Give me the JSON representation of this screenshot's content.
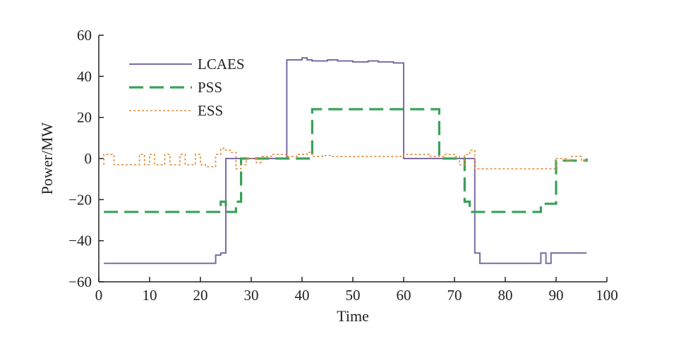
{
  "chart_data": {
    "type": "line",
    "title": "",
    "xlabel": "Time",
    "ylabel": "Power/MW",
    "xlim": [
      0,
      100
    ],
    "ylim": [
      -60,
      60
    ],
    "xticks": [
      0,
      10,
      20,
      30,
      40,
      50,
      60,
      70,
      80,
      90,
      100
    ],
    "yticks": [
      -60,
      -40,
      -20,
      0,
      20,
      40,
      60
    ],
    "ytick_labels": [
      "−60",
      "−40",
      "−20",
      "0",
      "20",
      "40",
      "60"
    ],
    "grid": false,
    "legend_position": "top-left",
    "series": [
      {
        "name": "LCAES",
        "color": "#7b6aa6",
        "dash": "solid",
        "step": true,
        "points": [
          [
            1,
            -51
          ],
          [
            23,
            -51
          ],
          [
            23,
            -47
          ],
          [
            24,
            -47
          ],
          [
            24,
            -46
          ],
          [
            25,
            -46
          ],
          [
            25,
            0
          ],
          [
            37,
            0
          ],
          [
            37,
            48
          ],
          [
            40,
            48
          ],
          [
            40,
            49
          ],
          [
            41,
            49
          ],
          [
            41,
            48
          ],
          [
            42,
            48
          ],
          [
            42,
            47.5
          ],
          [
            45,
            47.5
          ],
          [
            45,
            48
          ],
          [
            47,
            48
          ],
          [
            47,
            47.5
          ],
          [
            50,
            47.5
          ],
          [
            50,
            47
          ],
          [
            53,
            47
          ],
          [
            53,
            47.5
          ],
          [
            55,
            47.5
          ],
          [
            55,
            47
          ],
          [
            58,
            47
          ],
          [
            58,
            46.5
          ],
          [
            60,
            46.5
          ],
          [
            60,
            0
          ],
          [
            74,
            0
          ],
          [
            74,
            -46
          ],
          [
            75,
            -46
          ],
          [
            75,
            -51
          ],
          [
            87,
            -51
          ],
          [
            87,
            -46
          ],
          [
            88,
            -46
          ],
          [
            88,
            -51
          ],
          [
            89,
            -51
          ],
          [
            89,
            -46
          ],
          [
            96,
            -46
          ]
        ]
      },
      {
        "name": "PSS",
        "color": "#3aa15a",
        "dash": "dashed",
        "step": true,
        "points": [
          [
            1,
            -26
          ],
          [
            24,
            -26
          ],
          [
            24,
            -21
          ],
          [
            25,
            -21
          ],
          [
            25,
            -26
          ],
          [
            27,
            -26
          ],
          [
            27,
            -21
          ],
          [
            28,
            -21
          ],
          [
            28,
            0
          ],
          [
            42,
            0
          ],
          [
            42,
            24
          ],
          [
            67,
            24
          ],
          [
            67,
            0
          ],
          [
            72,
            0
          ],
          [
            72,
            -21
          ],
          [
            73,
            -21
          ],
          [
            73,
            -26
          ],
          [
            87,
            -26
          ],
          [
            87,
            -22
          ],
          [
            90,
            -22
          ],
          [
            90,
            -1
          ],
          [
            96,
            -1
          ],
          [
            96,
            0
          ]
        ]
      },
      {
        "name": "ESS",
        "color": "#e08a3c",
        "dash": "dotted",
        "step": true,
        "points": [
          [
            1,
            -3
          ],
          [
            1,
            2
          ],
          [
            3,
            2
          ],
          [
            3,
            -3
          ],
          [
            8,
            -3
          ],
          [
            8,
            2
          ],
          [
            9,
            2
          ],
          [
            9,
            -3
          ],
          [
            10,
            -3
          ],
          [
            10,
            2
          ],
          [
            11,
            2
          ],
          [
            11,
            -3
          ],
          [
            13,
            -3
          ],
          [
            13,
            2
          ],
          [
            14,
            2
          ],
          [
            14,
            -3
          ],
          [
            16,
            -3
          ],
          [
            16,
            2
          ],
          [
            17,
            2
          ],
          [
            17,
            -3
          ],
          [
            19,
            -3
          ],
          [
            19,
            2
          ],
          [
            20,
            2
          ],
          [
            20,
            -3
          ],
          [
            21,
            -3
          ],
          [
            21,
            -4
          ],
          [
            23,
            -4
          ],
          [
            23,
            2
          ],
          [
            24,
            2
          ],
          [
            24,
            5
          ],
          [
            25,
            5
          ],
          [
            25,
            4
          ],
          [
            26,
            4
          ],
          [
            26,
            3
          ],
          [
            27,
            3
          ],
          [
            27,
            -5
          ],
          [
            28,
            -5
          ],
          [
            28,
            -3
          ],
          [
            29,
            -3
          ],
          [
            29,
            0
          ],
          [
            31,
            0
          ],
          [
            31,
            -2
          ],
          [
            32,
            -2
          ],
          [
            32,
            1
          ],
          [
            34,
            1
          ],
          [
            34,
            2
          ],
          [
            37,
            2
          ],
          [
            37,
            1
          ],
          [
            39,
            1
          ],
          [
            39,
            2
          ],
          [
            41,
            2
          ],
          [
            41,
            3
          ],
          [
            42,
            3
          ],
          [
            42,
            1
          ],
          [
            44,
            1
          ],
          [
            44,
            1.5
          ],
          [
            46,
            1.5
          ],
          [
            46,
            1
          ],
          [
            60,
            1
          ],
          [
            60,
            2
          ],
          [
            65,
            2
          ],
          [
            65,
            1
          ],
          [
            68,
            1
          ],
          [
            68,
            2
          ],
          [
            70,
            2
          ],
          [
            70,
            1
          ],
          [
            71,
            1
          ],
          [
            71,
            -3
          ],
          [
            72,
            -3
          ],
          [
            72,
            2
          ],
          [
            73,
            2
          ],
          [
            73,
            4
          ],
          [
            74,
            4
          ],
          [
            74,
            -5
          ],
          [
            90,
            -5
          ],
          [
            90,
            0
          ],
          [
            92,
            0
          ],
          [
            92,
            -1
          ],
          [
            93,
            -1
          ],
          [
            93,
            1
          ],
          [
            95,
            1
          ],
          [
            95,
            -1
          ],
          [
            96,
            -1
          ]
        ]
      }
    ]
  }
}
